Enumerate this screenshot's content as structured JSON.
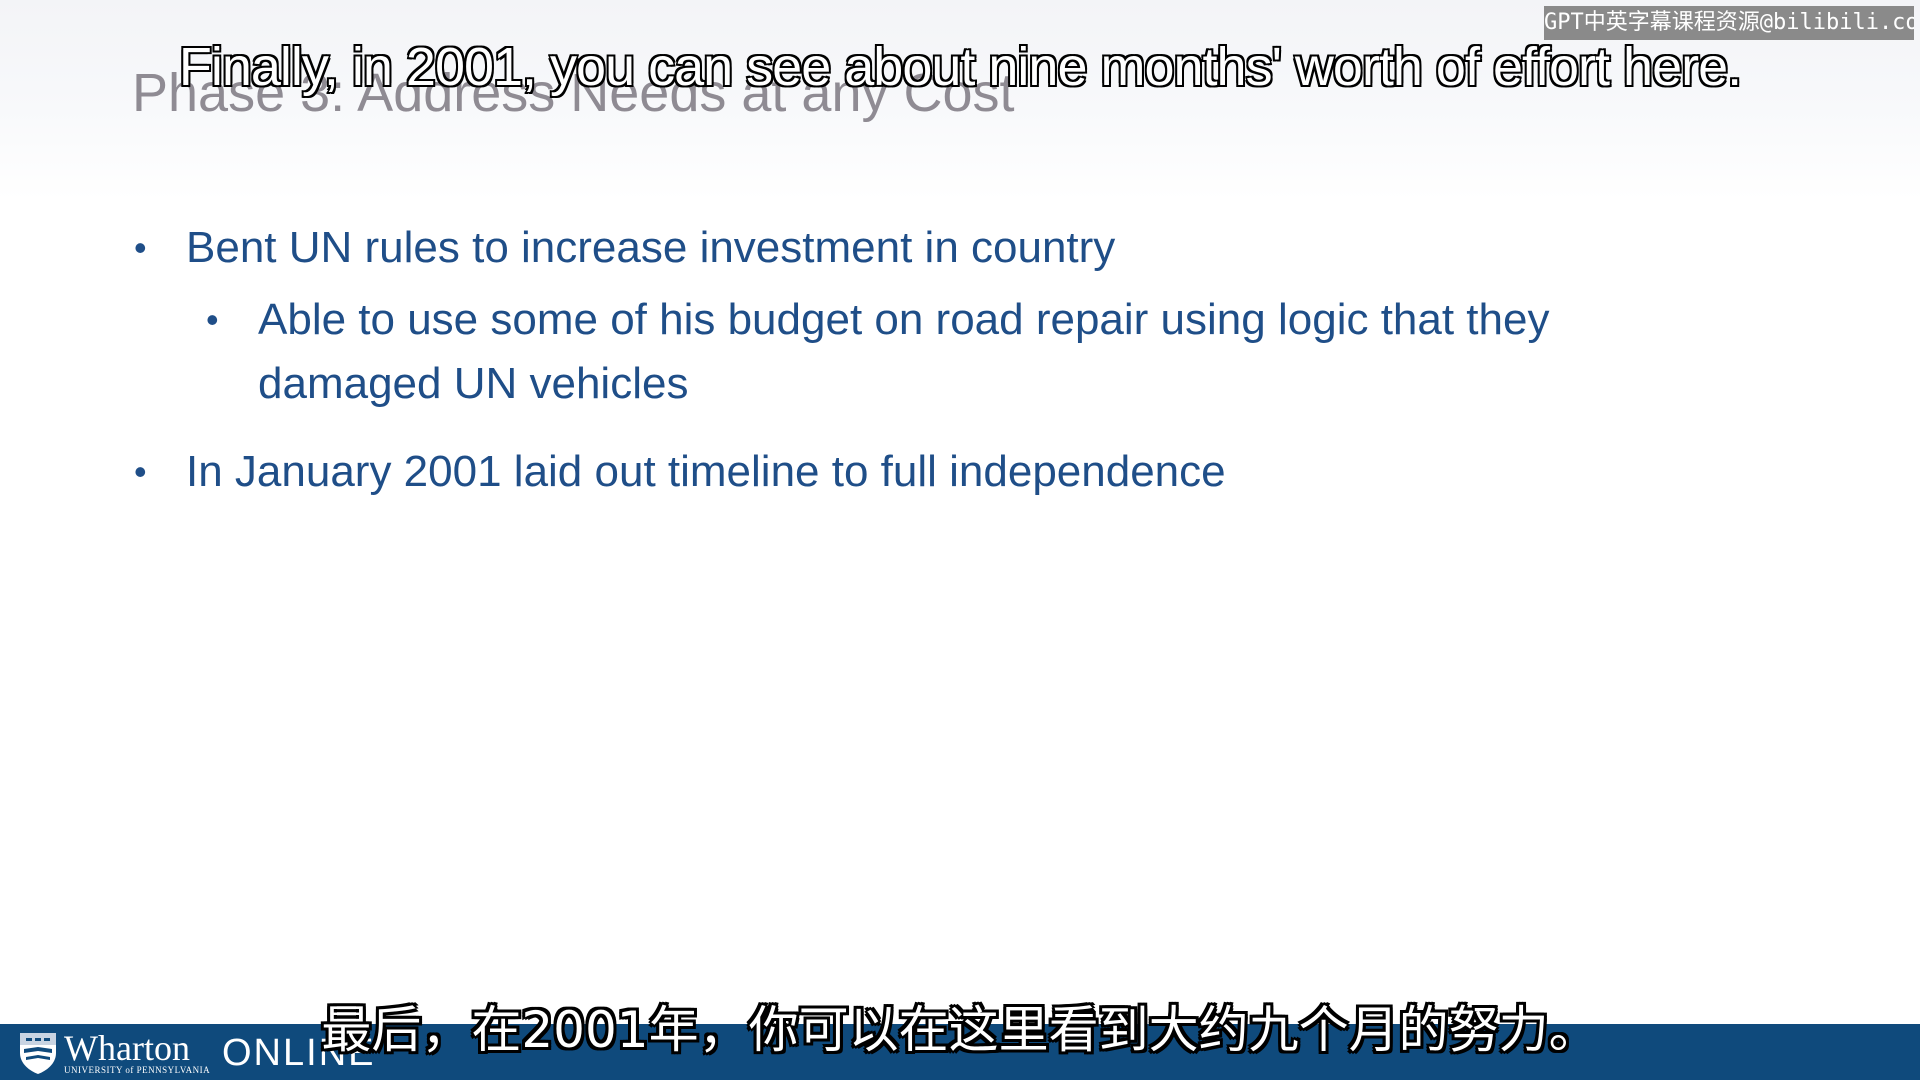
{
  "slide": {
    "title": "Phase 3: Address Needs at any Cost",
    "bullets": [
      {
        "level": 1,
        "marker": "•",
        "text": "Bent UN rules to increase investment in country"
      },
      {
        "level": 2,
        "marker": "•",
        "text": "Able to use some of his budget on road repair using logic that they damaged UN vehicles"
      },
      {
        "level": 1,
        "marker": "•",
        "text": "In January 2001 laid out timeline to full independence"
      }
    ]
  },
  "watermark": {
    "text": "GPT中英字幕课程资源@bilibili.com"
  },
  "subtitles": {
    "english": "Finally, in 2001, you can see about nine months' worth of effort here.",
    "chinese": "最后，在2001年，你可以在这里看到大约九个月的努力。"
  },
  "footer": {
    "brand_name": "Wharton",
    "brand_subline": "UNIVERSITY of PENNSYLVANIA",
    "product": "ONLINE",
    "logo_icon": "penn-shield-icon",
    "background_color": "#0f4a7c"
  },
  "colors": {
    "title": "#8f8b93",
    "bullet_text": "#1f4e88"
  }
}
